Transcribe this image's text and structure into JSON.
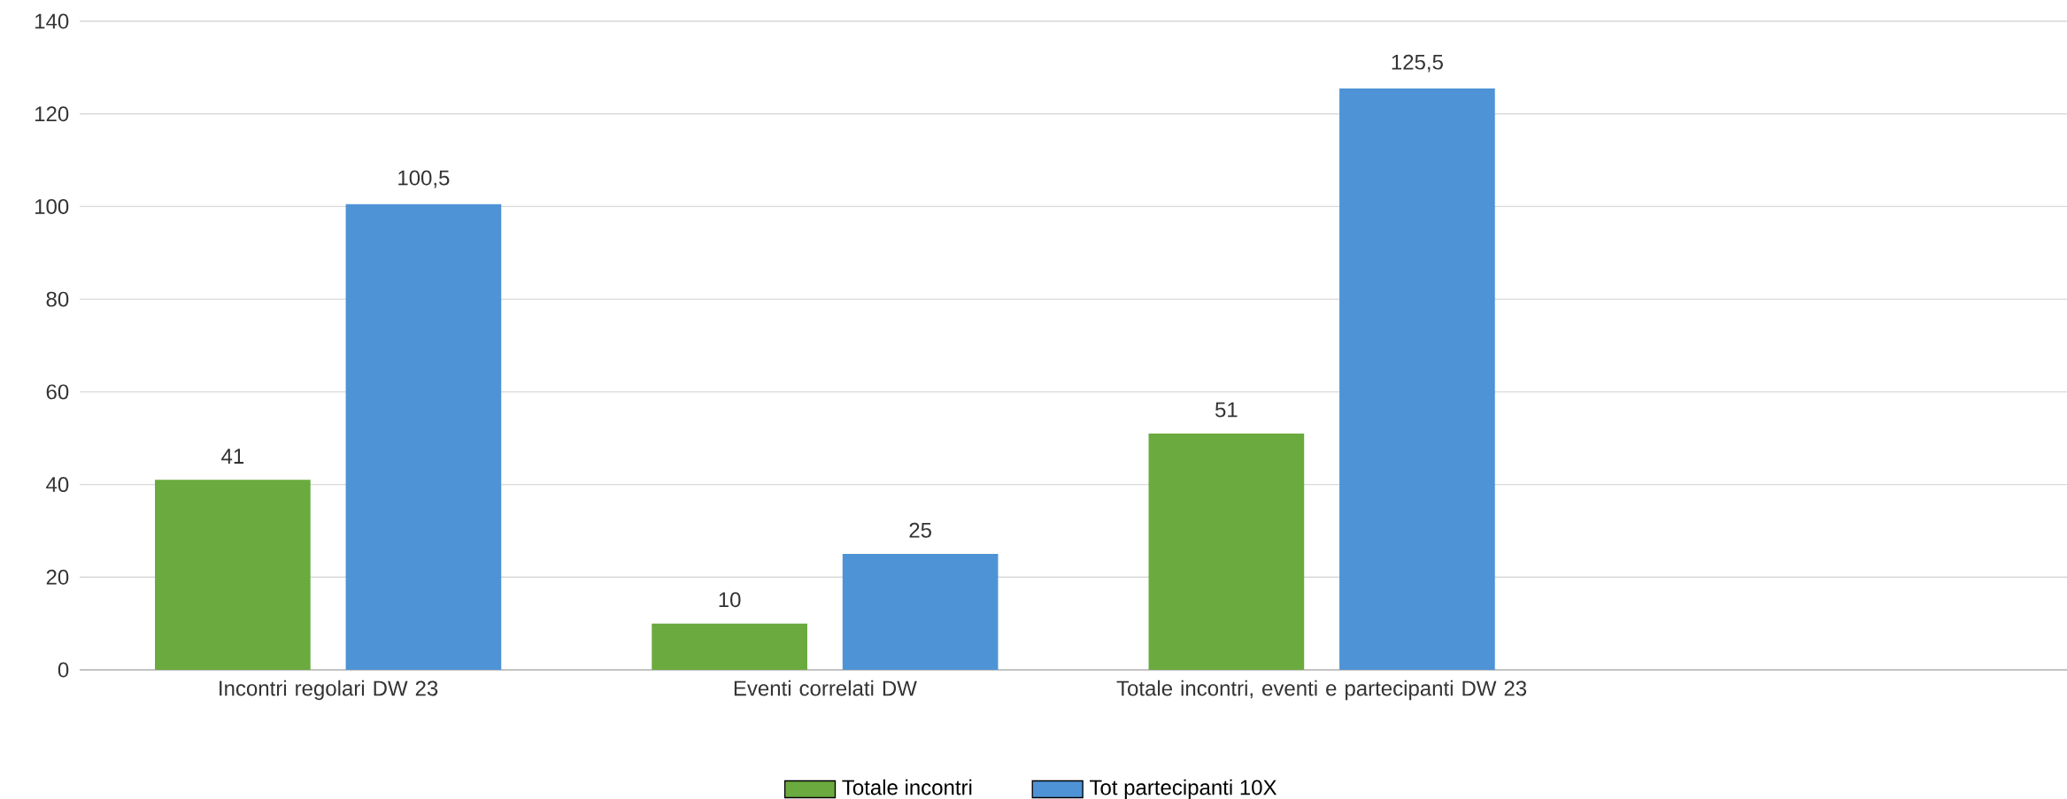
{
  "chart_data": {
    "type": "bar",
    "categories": [
      "Incontri regolari DW 23",
      "Eventi correlati DW",
      "Totale incontri, eventi e partecipanti DW 23",
      null
    ],
    "series": [
      {
        "name": "Totale incontri",
        "color": "#6aaa3e",
        "values": [
          41,
          10,
          51,
          null
        ],
        "value_labels": [
          "41",
          "10",
          "51",
          null
        ]
      },
      {
        "name": "Tot partecipanti 10X",
        "color": "#4e93d6",
        "values": [
          100.5,
          25,
          125.5,
          null
        ],
        "value_labels": [
          "100,5",
          "25",
          "125,5",
          null
        ]
      }
    ],
    "ylim": [
      0,
      140
    ],
    "yticks": [
      0,
      20,
      40,
      60,
      80,
      100,
      120,
      140
    ],
    "grid": "y",
    "legend": "bottom"
  }
}
